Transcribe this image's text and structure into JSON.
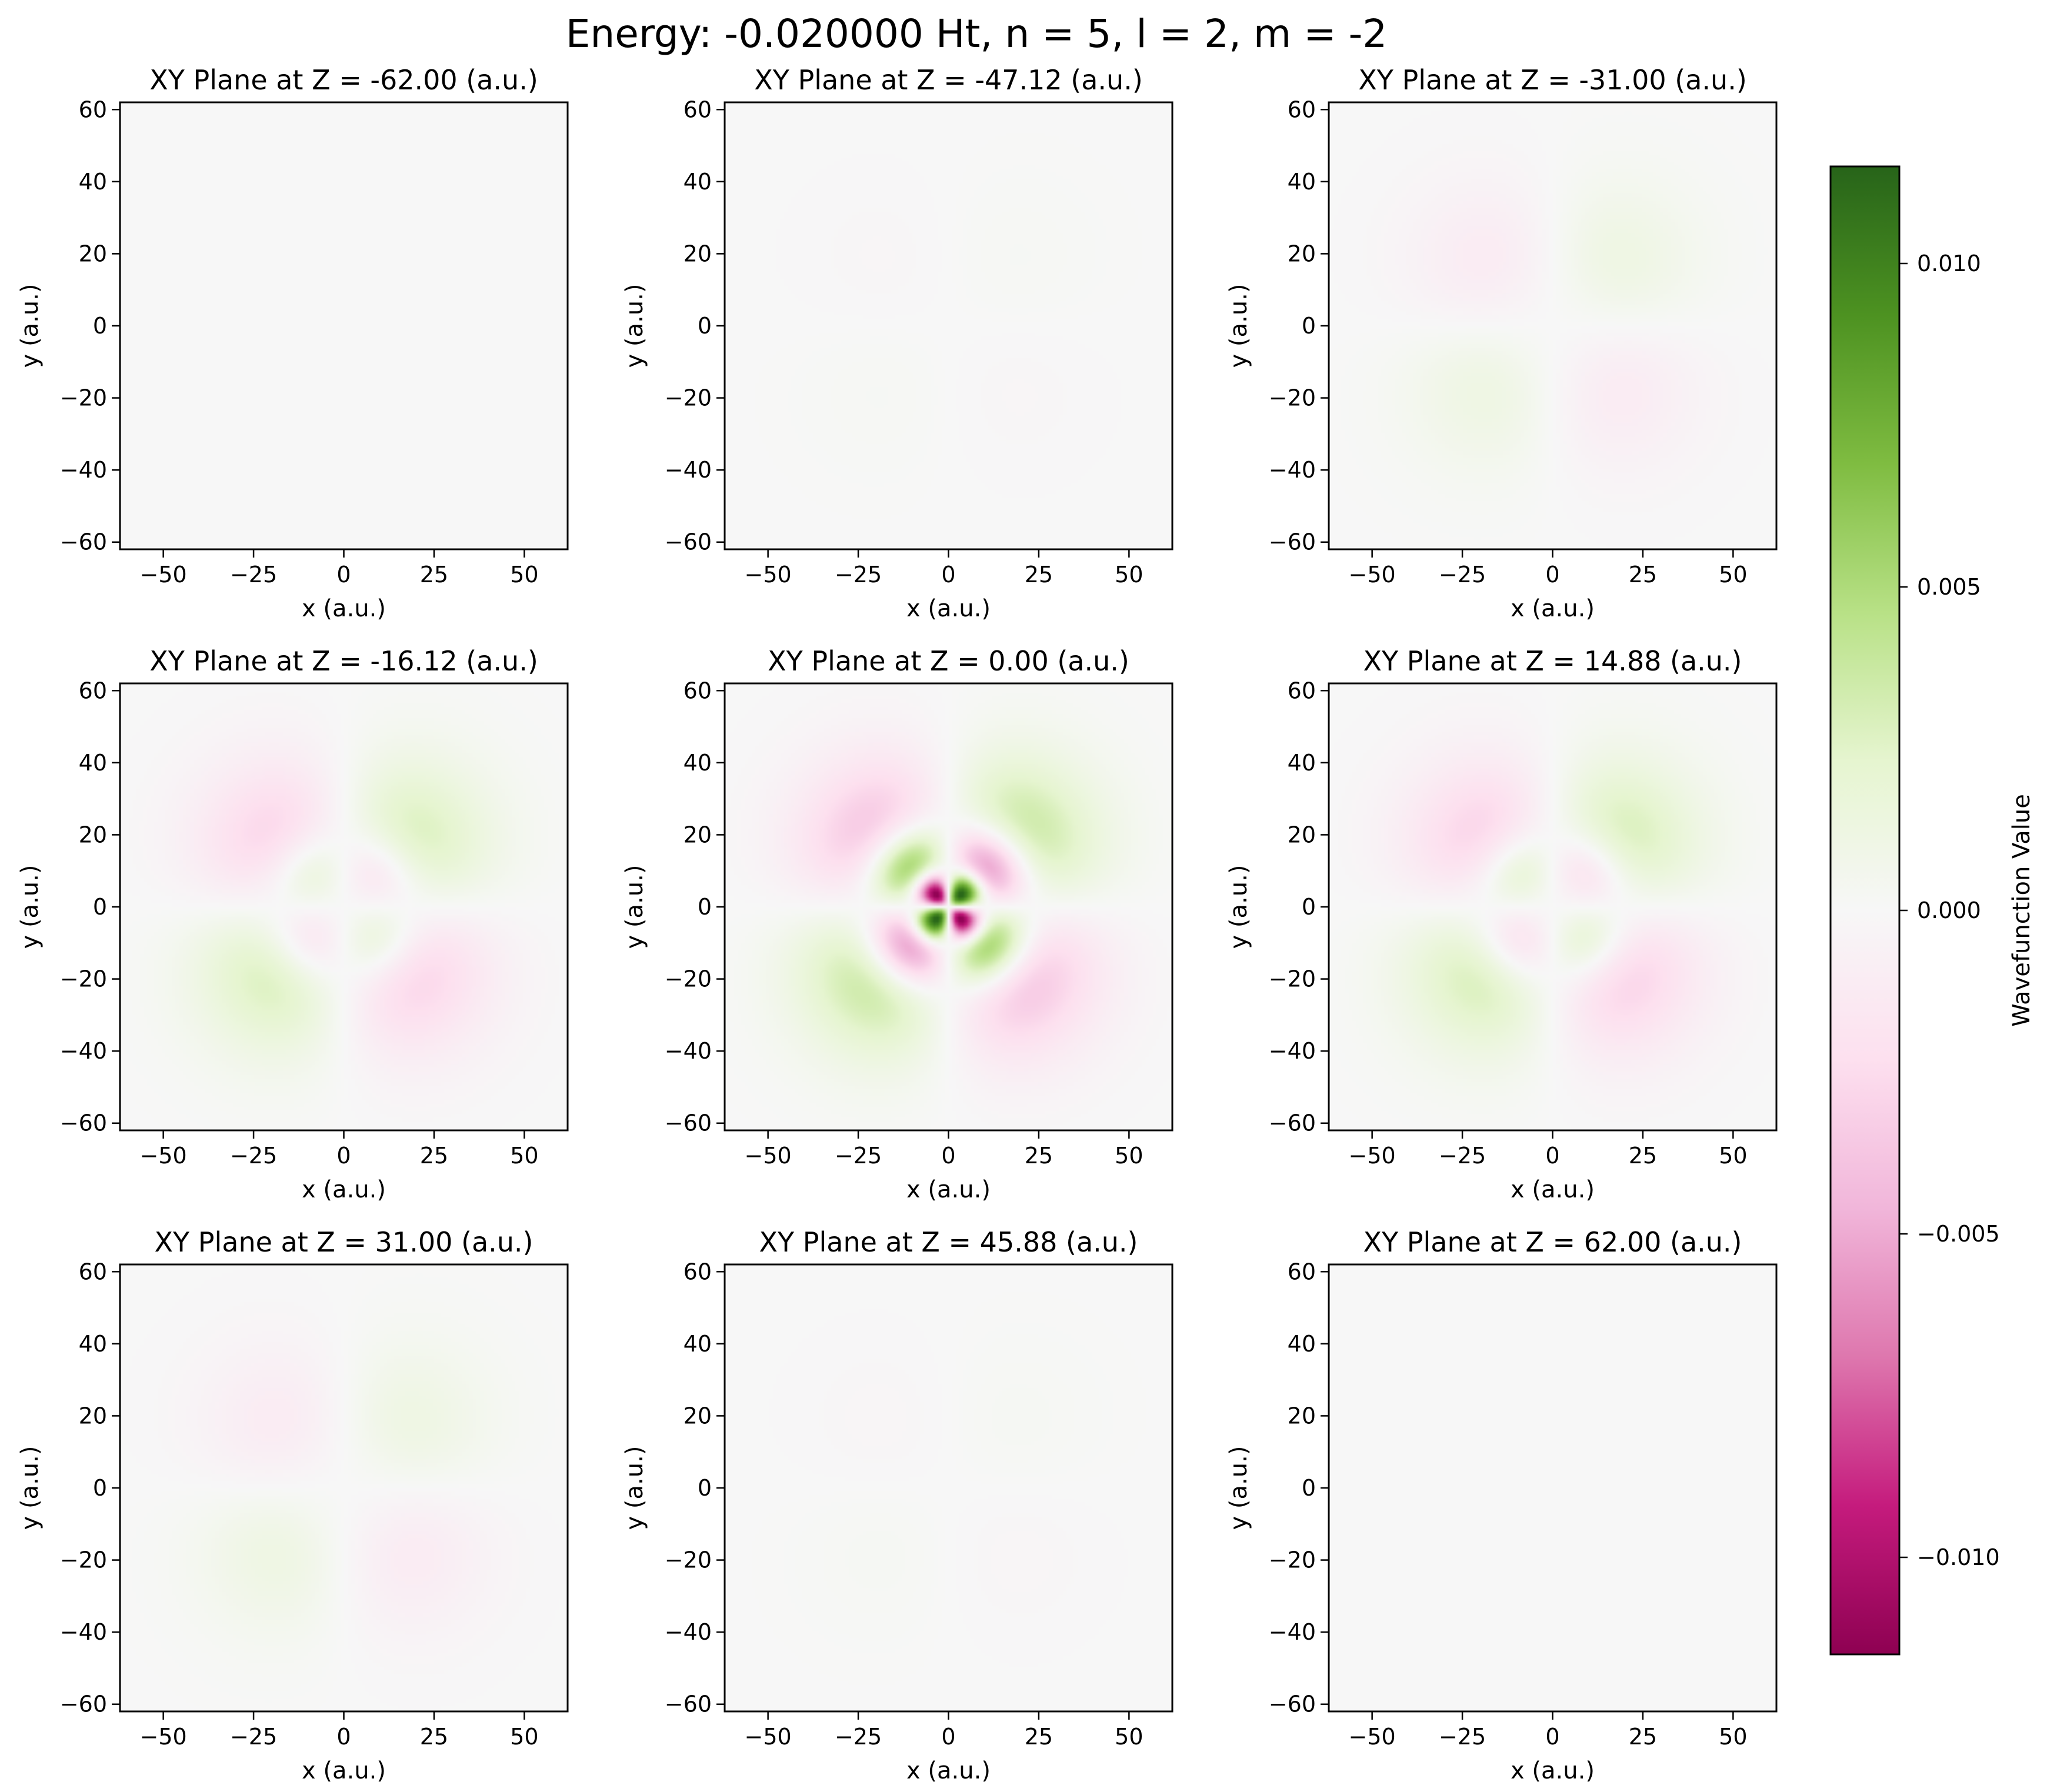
{
  "title": "Energy: -0.020000 Ht, n = 5, l = 2, m = -2",
  "colorbar": {
    "label": "Wavefunction Value",
    "range": [
      -0.0115,
      0.0115
    ],
    "ticks": [
      0.01,
      0.005,
      0.0,
      -0.005,
      -0.01
    ],
    "tick_labels": [
      "0.010",
      "0.005",
      "0.000",
      "−0.005",
      "−0.010"
    ],
    "colormap": "PiYG",
    "colors": [
      "#8e0152",
      "#c51b7d",
      "#de77ae",
      "#f1b6da",
      "#fde0ef",
      "#f7f7f7",
      "#e6f5d0",
      "#b8e186",
      "#7fbc41",
      "#4d9221",
      "#276419"
    ]
  },
  "chart_data": [
    {
      "type": "heatmap",
      "title": "XY Plane at Z = -62.00 (a.u.)",
      "z": -62.0,
      "xlabel": "x (a.u.)",
      "ylabel": "y (a.u.)",
      "xlim": [
        -62,
        62
      ],
      "ylim": [
        -62,
        62
      ],
      "xticks": [
        -50,
        -25,
        0,
        25,
        50
      ],
      "yticks": [
        -60,
        -40,
        -20,
        0,
        20,
        40,
        60
      ]
    },
    {
      "type": "heatmap",
      "title": "XY Plane at Z = -47.12 (a.u.)",
      "z": -47.12,
      "xlabel": "x (a.u.)",
      "ylabel": "y (a.u.)",
      "xlim": [
        -62,
        62
      ],
      "ylim": [
        -62,
        62
      ],
      "xticks": [
        -50,
        -25,
        0,
        25,
        50
      ],
      "yticks": [
        -60,
        -40,
        -20,
        0,
        20,
        40,
        60
      ]
    },
    {
      "type": "heatmap",
      "title": "XY Plane at Z = -31.00 (a.u.)",
      "z": -31.0,
      "xlabel": "x (a.u.)",
      "ylabel": "y (a.u.)",
      "xlim": [
        -62,
        62
      ],
      "ylim": [
        -62,
        62
      ],
      "xticks": [
        -50,
        -25,
        0,
        25,
        50
      ],
      "yticks": [
        -60,
        -40,
        -20,
        0,
        20,
        40,
        60
      ]
    },
    {
      "type": "heatmap",
      "title": "XY Plane at Z = -16.12 (a.u.)",
      "z": -16.12,
      "xlabel": "x (a.u.)",
      "ylabel": "y (a.u.)",
      "xlim": [
        -62,
        62
      ],
      "ylim": [
        -62,
        62
      ],
      "xticks": [
        -50,
        -25,
        0,
        25,
        50
      ],
      "yticks": [
        -60,
        -40,
        -20,
        0,
        20,
        40,
        60
      ]
    },
    {
      "type": "heatmap",
      "title": "XY Plane at Z = 0.00 (a.u.)",
      "z": 0.0,
      "xlabel": "x (a.u.)",
      "ylabel": "y (a.u.)",
      "xlim": [
        -62,
        62
      ],
      "ylim": [
        -62,
        62
      ],
      "xticks": [
        -50,
        -25,
        0,
        25,
        50
      ],
      "yticks": [
        -60,
        -40,
        -20,
        0,
        20,
        40,
        60
      ]
    },
    {
      "type": "heatmap",
      "title": "XY Plane at Z = 14.88 (a.u.)",
      "z": 14.88,
      "xlabel": "x (a.u.)",
      "ylabel": "y (a.u.)",
      "xlim": [
        -62,
        62
      ],
      "ylim": [
        -62,
        62
      ],
      "xticks": [
        -50,
        -25,
        0,
        25,
        50
      ],
      "yticks": [
        -60,
        -40,
        -20,
        0,
        20,
        40,
        60
      ]
    },
    {
      "type": "heatmap",
      "title": "XY Plane at Z = 31.00 (a.u.)",
      "z": 31.0,
      "xlabel": "x (a.u.)",
      "ylabel": "y (a.u.)",
      "xlim": [
        -62,
        62
      ],
      "ylim": [
        -62,
        62
      ],
      "xticks": [
        -50,
        -25,
        0,
        25,
        50
      ],
      "yticks": [
        -60,
        -40,
        -20,
        0,
        20,
        40,
        60
      ]
    },
    {
      "type": "heatmap",
      "title": "XY Plane at Z = 45.88 (a.u.)",
      "z": 45.88,
      "xlabel": "x (a.u.)",
      "ylabel": "y (a.u.)",
      "xlim": [
        -62,
        62
      ],
      "ylim": [
        -62,
        62
      ],
      "xticks": [
        -50,
        -25,
        0,
        25,
        50
      ],
      "yticks": [
        -60,
        -40,
        -20,
        0,
        20,
        40,
        60
      ]
    },
    {
      "type": "heatmap",
      "title": "XY Plane at Z = 62.00 (a.u.)",
      "z": 62.0,
      "xlabel": "x (a.u.)",
      "ylabel": "y (a.u.)",
      "xlim": [
        -62,
        62
      ],
      "ylim": [
        -62,
        62
      ],
      "xticks": [
        -50,
        -25,
        0,
        25,
        50
      ],
      "yticks": [
        -60,
        -40,
        -20,
        0,
        20,
        40,
        60
      ]
    }
  ]
}
